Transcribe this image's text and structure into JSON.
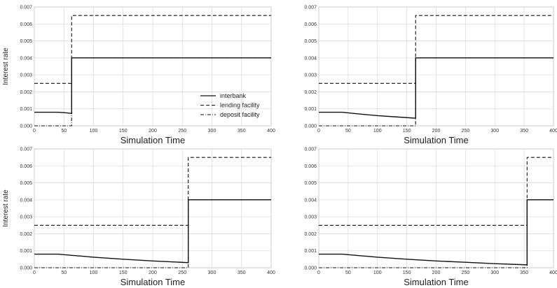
{
  "chart_data": [
    {
      "type": "line",
      "xlabel": "Simulation Time",
      "ylabel": "Interest rate",
      "xlim": [
        0,
        400
      ],
      "ylim": [
        0,
        0.007
      ],
      "xticks": [
        "0",
        "50",
        "100",
        "150",
        "200",
        "250",
        "300",
        "350",
        "400"
      ],
      "yticks": [
        "0.000",
        "0.001",
        "0.002",
        "0.003",
        "0.004",
        "0.005",
        "0.006",
        "0.007"
      ],
      "grid": true,
      "legend": "center-right",
      "series": [
        {
          "name": "interbank",
          "style": "solid",
          "x": [
            0,
            25,
            40,
            50,
            63,
            63,
            400
          ],
          "y": [
            0.0008,
            0.0008,
            0.0008,
            0.00078,
            0.00073,
            0.004,
            0.004
          ]
        },
        {
          "name": "lending facility",
          "style": "dashed",
          "x": [
            0,
            63,
            63,
            400
          ],
          "y": [
            0.0025,
            0.0025,
            0.0065,
            0.0065
          ]
        },
        {
          "name": "deposit facility",
          "style": "dashdot",
          "x": [
            0,
            63,
            63,
            400
          ],
          "y": [
            0.0,
            0.0,
            0.004,
            0.004
          ]
        }
      ]
    },
    {
      "type": "line",
      "xlabel": "Simulation Time",
      "ylabel": "",
      "xlim": [
        0,
        400
      ],
      "ylim": [
        0,
        0.007
      ],
      "xticks": [
        "0",
        "50",
        "100",
        "150",
        "200",
        "250",
        "300",
        "350",
        "400"
      ],
      "yticks": [
        "0.000",
        "0.001",
        "0.002",
        "0.003",
        "0.004",
        "0.005",
        "0.006",
        "0.007"
      ],
      "grid": true,
      "series": [
        {
          "style": "solid",
          "x": [
            0,
            25,
            40,
            60,
            80,
            100,
            130,
            165,
            165,
            400
          ],
          "y": [
            0.0008,
            0.0008,
            0.0008,
            0.00073,
            0.00066,
            0.0006,
            0.00053,
            0.00045,
            0.004,
            0.004
          ]
        },
        {
          "style": "dashed",
          "x": [
            0,
            165,
            165,
            400
          ],
          "y": [
            0.0025,
            0.0025,
            0.0065,
            0.0065
          ]
        },
        {
          "style": "dashdot",
          "x": [
            0,
            165,
            165,
            400
          ],
          "y": [
            0.0,
            0.0,
            0.004,
            0.004
          ]
        }
      ]
    },
    {
      "type": "line",
      "xlabel": "Simulation Time",
      "ylabel": "Interest rate",
      "xlim": [
        0,
        400
      ],
      "ylim": [
        0,
        0.007
      ],
      "xticks": [
        "0",
        "50",
        "100",
        "150",
        "200",
        "250",
        "300",
        "350",
        "400"
      ],
      "yticks": [
        "0.000",
        "0.001",
        "0.002",
        "0.003",
        "0.004",
        "0.005",
        "0.006",
        "0.007"
      ],
      "grid": true,
      "series": [
        {
          "style": "solid",
          "x": [
            0,
            25,
            40,
            60,
            80,
            100,
            150,
            200,
            260,
            260,
            400
          ],
          "y": [
            0.0008,
            0.0008,
            0.0008,
            0.00074,
            0.00068,
            0.00062,
            0.0005,
            0.0004,
            0.0003,
            0.004,
            0.004
          ]
        },
        {
          "style": "dashed",
          "x": [
            0,
            260,
            260,
            400
          ],
          "y": [
            0.0025,
            0.0025,
            0.0065,
            0.0065
          ]
        },
        {
          "style": "dashdot",
          "x": [
            0,
            260,
            260,
            400
          ],
          "y": [
            0.0,
            0.0,
            0.004,
            0.004
          ]
        }
      ]
    },
    {
      "type": "line",
      "xlabel": "Simulation Time",
      "ylabel": "",
      "xlim": [
        0,
        400
      ],
      "ylim": [
        0,
        0.007
      ],
      "xticks": [
        "0",
        "50",
        "100",
        "150",
        "200",
        "250",
        "300",
        "350",
        "400"
      ],
      "yticks": [
        "0.000",
        "0.001",
        "0.002",
        "0.003",
        "0.004",
        "0.005",
        "0.006",
        "0.007"
      ],
      "grid": true,
      "series": [
        {
          "style": "solid",
          "x": [
            0,
            25,
            40,
            60,
            80,
            100,
            150,
            200,
            250,
            300,
            355,
            355,
            400
          ],
          "y": [
            0.0008,
            0.0008,
            0.0008,
            0.00074,
            0.00068,
            0.00062,
            0.0005,
            0.0004,
            0.00032,
            0.00024,
            0.00017,
            0.004,
            0.004
          ]
        },
        {
          "style": "dashed",
          "x": [
            0,
            355,
            355,
            400
          ],
          "y": [
            0.0025,
            0.0025,
            0.0065,
            0.0065
          ]
        },
        {
          "style": "dashdot",
          "x": [
            0,
            355,
            355,
            400
          ],
          "y": [
            0.0,
            0.0,
            0.004,
            0.004
          ]
        }
      ]
    }
  ]
}
